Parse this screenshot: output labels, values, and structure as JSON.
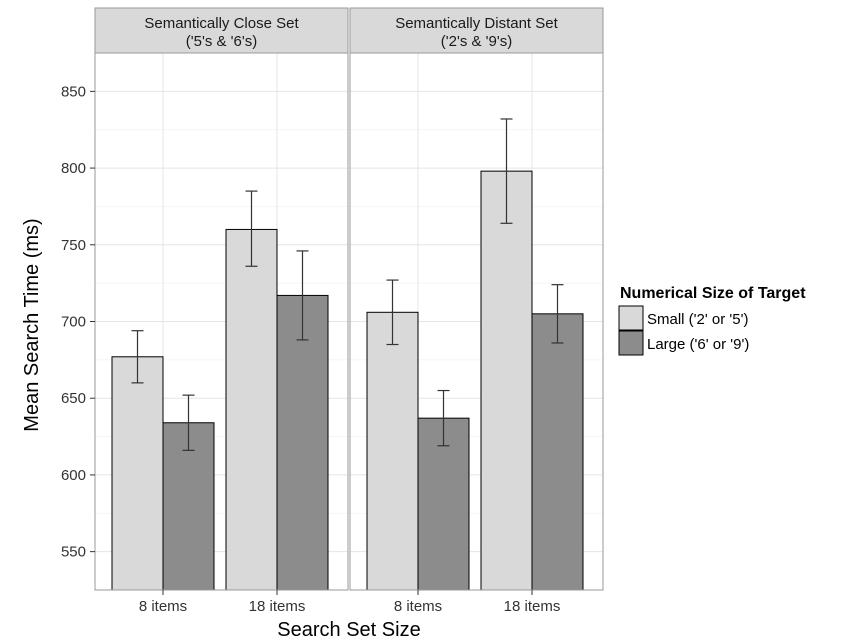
{
  "chart_data": {
    "type": "bar",
    "ylabel": "Mean Search Time (ms)",
    "xlabel": "Search Set Size",
    "ylim": [
      525,
      875
    ],
    "y_ticks": [
      550,
      600,
      650,
      700,
      750,
      800,
      850
    ],
    "grid": true,
    "categories": [
      "8 items",
      "18 items"
    ],
    "legend": {
      "title": "Numerical Size of Target",
      "position": "right",
      "entries": [
        "Small ('2' or '5')",
        "Large ('6' or '9')"
      ]
    },
    "series_colors": [
      "#d9d9d9",
      "#8c8c8c"
    ],
    "panels": [
      {
        "title_line1": "Semantically Close Set",
        "title_line2": "('5's & '6's)",
        "series": [
          {
            "name": "Small ('2' or '5')",
            "values": [
              677,
              760
            ],
            "err_low": [
              660,
              736
            ],
            "err_high": [
              694,
              785
            ]
          },
          {
            "name": "Large ('6' or '9')",
            "values": [
              634,
              717
            ],
            "err_low": [
              616,
              688
            ],
            "err_high": [
              652,
              746
            ]
          }
        ]
      },
      {
        "title_line1": "Semantically Distant Set",
        "title_line2": "('2's & '9's)",
        "series": [
          {
            "name": "Small ('2' or '5')",
            "values": [
              706,
              798
            ],
            "err_low": [
              685,
              764
            ],
            "err_high": [
              727,
              832
            ]
          },
          {
            "name": "Large ('6' or '9')",
            "values": [
              637,
              705
            ],
            "err_low": [
              619,
              686
            ],
            "err_high": [
              655,
              724
            ]
          }
        ]
      }
    ]
  }
}
